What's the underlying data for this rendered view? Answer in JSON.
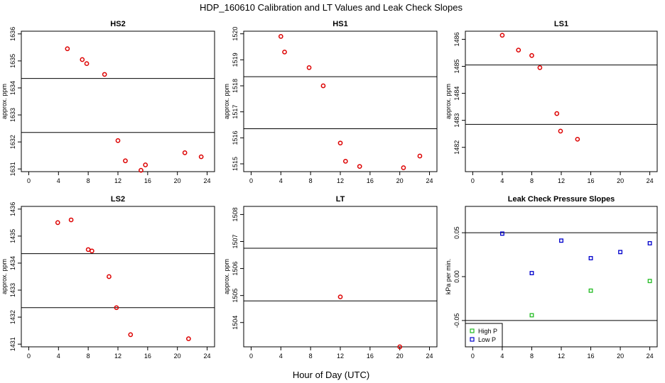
{
  "figure": {
    "title": "HDP_160610  Calibration and LT Values and Leak Check Slopes",
    "xlabel": "Hour of Day (UTC)"
  },
  "chart_data": [
    {
      "type": "scatter",
      "title": "HS2",
      "ylabel": "approx. ppm",
      "xlim": [
        -1,
        25
      ],
      "ylim": [
        1630.9,
        1636.1
      ],
      "xticks": [
        0,
        4,
        8,
        12,
        16,
        20,
        24
      ],
      "yticks": [
        1631,
        1632,
        1633,
        1634,
        1635,
        1636
      ],
      "hlines": [
        1634.35,
        1632.35
      ],
      "series": [
        {
          "color": "#dd0000",
          "marker": "circle",
          "x": [
            5.2,
            7.2,
            7.8,
            10.2,
            12,
            13,
            15.1,
            15.7,
            21,
            23.2
          ],
          "y": [
            1635.45,
            1635.05,
            1634.9,
            1634.5,
            1632.05,
            1631.3,
            1630.95,
            1631.15,
            1631.6,
            1631.45
          ]
        }
      ]
    },
    {
      "type": "scatter",
      "title": "HS1",
      "ylabel": "approx. ppm",
      "xlim": [
        -1,
        25
      ],
      "ylim": [
        1514.7,
        1520.1
      ],
      "xticks": [
        0,
        4,
        8,
        12,
        16,
        20,
        24
      ],
      "yticks": [
        1515,
        1516,
        1517,
        1518,
        1519,
        1520
      ],
      "hlines": [
        1518.35,
        1516.35
      ],
      "series": [
        {
          "color": "#dd0000",
          "marker": "circle",
          "x": [
            4,
            4.5,
            7.8,
            9.7,
            12,
            12.7,
            14.6,
            20.5,
            22.7
          ],
          "y": [
            1519.9,
            1519.3,
            1518.7,
            1518,
            1515.8,
            1515.1,
            1514.9,
            1514.85,
            1515.3
          ]
        }
      ]
    },
    {
      "type": "scatter",
      "title": "LS1",
      "ylabel": "approx. ppm",
      "xlim": [
        -1,
        25
      ],
      "ylim": [
        1481.1,
        1486.3
      ],
      "xticks": [
        0,
        4,
        8,
        12,
        16,
        20,
        24
      ],
      "yticks": [
        1482,
        1483,
        1484,
        1485,
        1486
      ],
      "hlines": [
        1485.05,
        1482.85
      ],
      "series": [
        {
          "color": "#dd0000",
          "marker": "circle",
          "x": [
            4,
            6.2,
            8,
            9.1,
            11.4,
            11.9,
            14.2
          ],
          "y": [
            1486.15,
            1485.6,
            1485.4,
            1484.95,
            1483.25,
            1482.6,
            1482.3
          ]
        }
      ]
    },
    {
      "type": "scatter",
      "title": "LS2",
      "ylabel": "approx. ppm",
      "xlim": [
        -1,
        25
      ],
      "ylim": [
        1430.9,
        1436.1
      ],
      "xticks": [
        0,
        4,
        8,
        12,
        16,
        20,
        24
      ],
      "yticks": [
        1431,
        1432,
        1433,
        1434,
        1435,
        1436
      ],
      "hlines": [
        1434.35,
        1432.35
      ],
      "series": [
        {
          "color": "#dd0000",
          "marker": "circle",
          "x": [
            3.9,
            5.7,
            8,
            8.5,
            10.8,
            11.8,
            13.7,
            21.5
          ],
          "y": [
            1435.5,
            1435.6,
            1434.5,
            1434.45,
            1433.5,
            1432.35,
            1431.35,
            1431.2
          ]
        }
      ]
    },
    {
      "type": "scatter",
      "title": "LT",
      "ylabel": "approx. ppm",
      "xlim": [
        -1,
        25
      ],
      "ylim": [
        1503.1,
        1508.3
      ],
      "xticks": [
        0,
        4,
        8,
        12,
        16,
        20,
        24
      ],
      "yticks": [
        1504,
        1505,
        1506,
        1507,
        1508
      ],
      "hlines": [
        1506.75,
        1504.8
      ],
      "series": [
        {
          "color": "#dd0000",
          "marker": "circle",
          "x": [
            12,
            20
          ],
          "y": [
            1504.95,
            1503.1
          ]
        }
      ]
    },
    {
      "type": "scatter",
      "title": "Leak Check Pressure Slopes",
      "ylabel": "kPa per min.",
      "xlim": [
        -1,
        25
      ],
      "ylim": [
        -0.08,
        0.08
      ],
      "xticks": [
        0,
        4,
        8,
        12,
        16,
        20,
        24
      ],
      "yticks": [
        -0.05,
        0,
        0.05
      ],
      "ytick_labels": [
        "-0.05",
        "0.00",
        "0.05"
      ],
      "hlines": [
        0.05,
        -0.05
      ],
      "legend": "bottom-left",
      "series": [
        {
          "name": "High P",
          "color": "#22bb22",
          "marker": "square",
          "x": [
            8,
            16,
            24
          ],
          "y": [
            -0.044,
            -0.016,
            -0.005
          ]
        },
        {
          "name": "Low P",
          "color": "#0000cc",
          "marker": "square",
          "x": [
            4,
            8,
            12,
            16,
            20,
            24
          ],
          "y": [
            0.049,
            0.004,
            0.041,
            0.021,
            0.028,
            0.038
          ]
        }
      ]
    }
  ]
}
